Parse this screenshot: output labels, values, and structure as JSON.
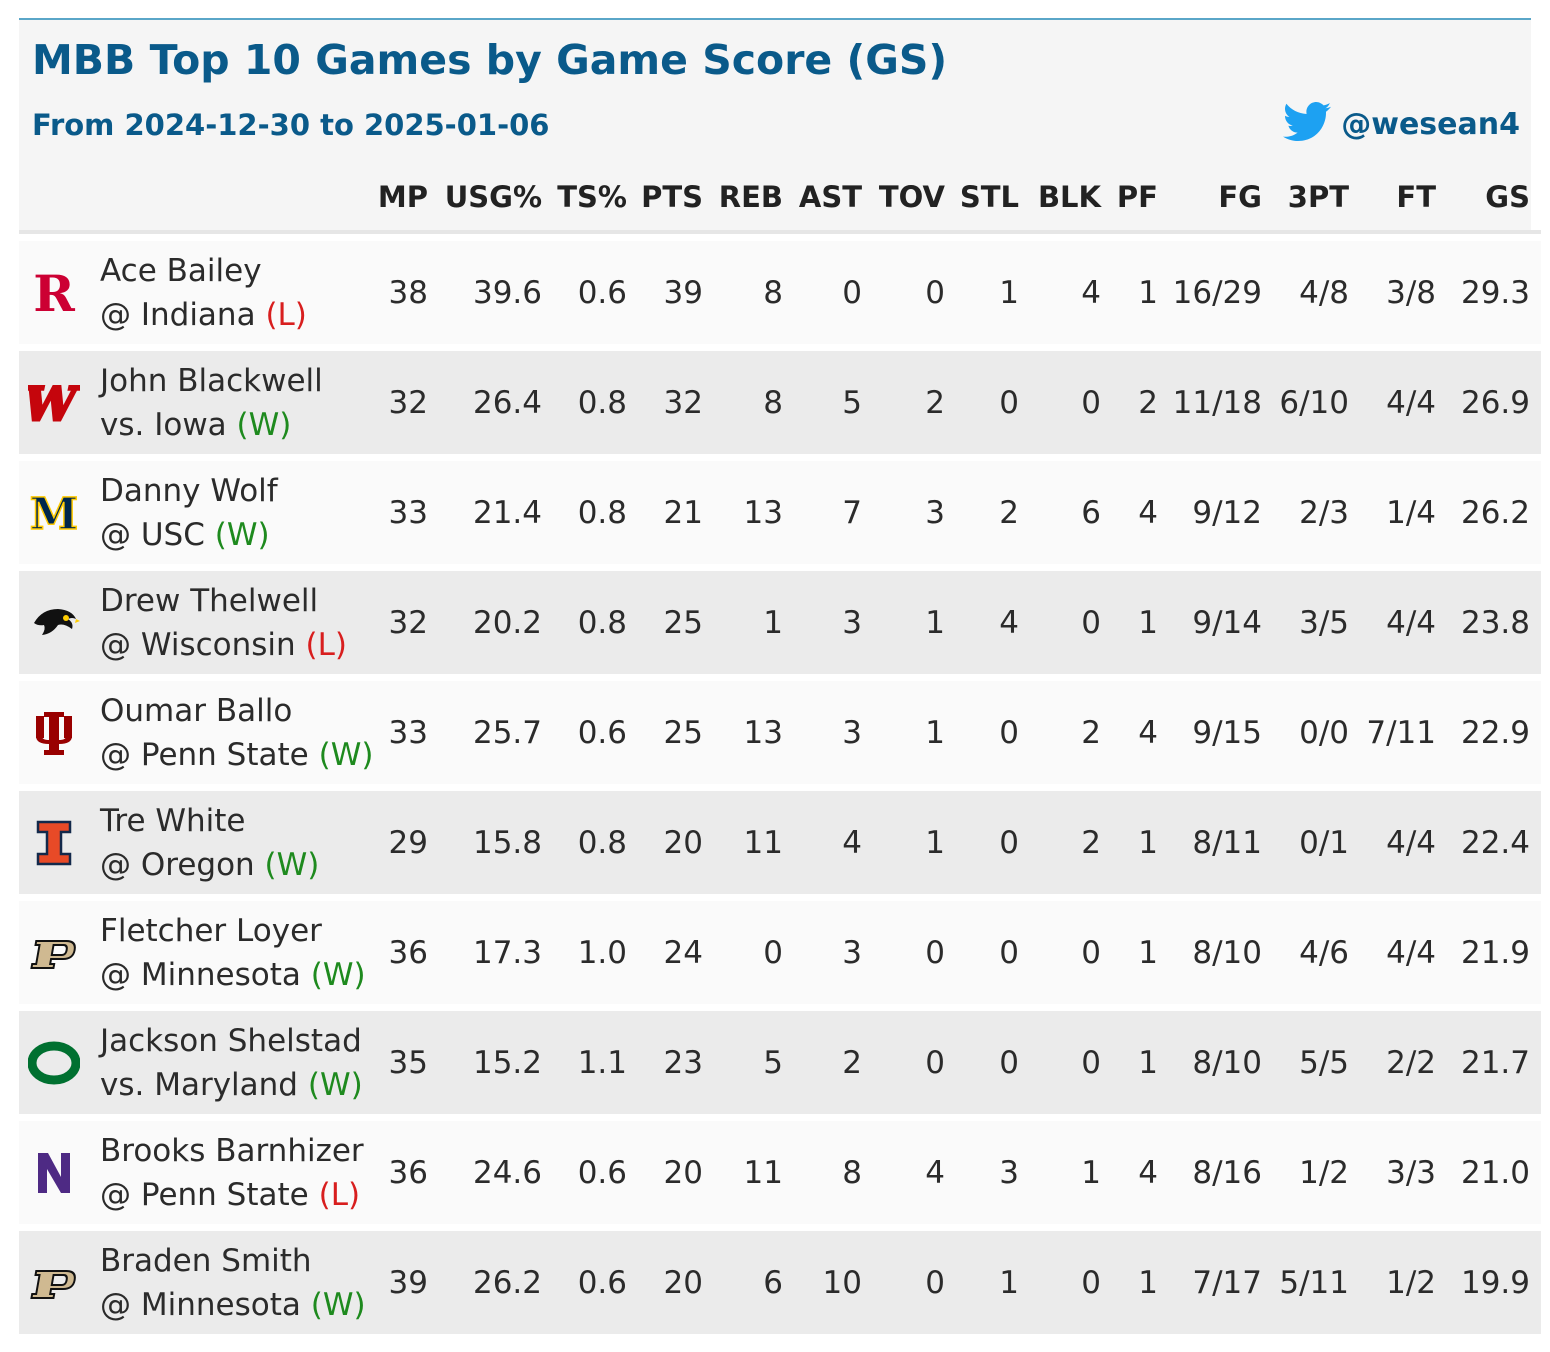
{
  "title": "MBB Top 10 Games by Game Score (GS)",
  "subtitle": "From 2024-12-30 to 2025-01-06",
  "handle": "@wesean4",
  "icons": {
    "social": "twitter-bird-icon"
  },
  "colors": {
    "title": "#0a5a8a",
    "win": "#1e8a1e",
    "loss": "#d81e1e",
    "accent_line": "#5aa6c8"
  },
  "columns": [
    "MP",
    "USG%",
    "TS%",
    "PTS",
    "REB",
    "AST",
    "TOV",
    "STL",
    "BLK",
    "PF",
    "FG",
    "3PT",
    "FT",
    "GS"
  ],
  "rows": [
    {
      "logo": "rutgers-logo",
      "logo_color": "#cc0033",
      "player": "Ace Bailey",
      "game": "@ Indiana",
      "result": "(L)",
      "stats": [
        "38",
        "39.6",
        "0.6",
        "39",
        "8",
        "0",
        "0",
        "1",
        "4",
        "1",
        "16/29",
        "4/8",
        "3/8",
        "29.3"
      ]
    },
    {
      "logo": "wisconsin-logo",
      "logo_color": "#c5050c",
      "player": "John Blackwell",
      "game": "vs. Iowa",
      "result": "(W)",
      "stats": [
        "32",
        "26.4",
        "0.8",
        "32",
        "8",
        "5",
        "2",
        "0",
        "0",
        "2",
        "11/18",
        "6/10",
        "4/4",
        "26.9"
      ]
    },
    {
      "logo": "michigan-logo",
      "logo_color": "#00274c",
      "player": "Danny Wolf",
      "game": "@ USC",
      "result": "(W)",
      "stats": [
        "33",
        "21.4",
        "0.8",
        "21",
        "13",
        "7",
        "3",
        "2",
        "6",
        "4",
        "9/12",
        "2/3",
        "1/4",
        "26.2"
      ]
    },
    {
      "logo": "iowa-logo",
      "logo_color": "#111111",
      "player": "Drew Thelwell",
      "game": "@ Wisconsin",
      "result": "(L)",
      "stats": [
        "32",
        "20.2",
        "0.8",
        "25",
        "1",
        "3",
        "1",
        "4",
        "0",
        "1",
        "9/14",
        "3/5",
        "4/4",
        "23.8"
      ]
    },
    {
      "logo": "indiana-logo",
      "logo_color": "#990000",
      "player": "Oumar Ballo",
      "game": "@ Penn State",
      "result": "(W)",
      "stats": [
        "33",
        "25.7",
        "0.6",
        "25",
        "13",
        "3",
        "1",
        "0",
        "2",
        "4",
        "9/15",
        "0/0",
        "7/11",
        "22.9"
      ]
    },
    {
      "logo": "illinois-logo",
      "logo_color": "#e84a27",
      "player": "Tre White",
      "game": "@ Oregon",
      "result": "(W)",
      "stats": [
        "29",
        "15.8",
        "0.8",
        "20",
        "11",
        "4",
        "1",
        "0",
        "2",
        "1",
        "8/11",
        "0/1",
        "4/4",
        "22.4"
      ]
    },
    {
      "logo": "purdue-logo",
      "logo_color": "#cfb991",
      "player": "Fletcher Loyer",
      "game": "@ Minnesota",
      "result": "(W)",
      "stats": [
        "36",
        "17.3",
        "1.0",
        "24",
        "0",
        "3",
        "0",
        "0",
        "0",
        "1",
        "8/10",
        "4/6",
        "4/4",
        "21.9"
      ]
    },
    {
      "logo": "oregon-logo",
      "logo_color": "#007030",
      "player": "Jackson Shelstad",
      "game": "vs. Maryland",
      "result": "(W)",
      "stats": [
        "35",
        "15.2",
        "1.1",
        "23",
        "5",
        "2",
        "0",
        "0",
        "0",
        "1",
        "8/10",
        "5/5",
        "2/2",
        "21.7"
      ]
    },
    {
      "logo": "northwestern-logo",
      "logo_color": "#4e2a84",
      "player": "Brooks Barnhizer",
      "game": "@ Penn State",
      "result": "(L)",
      "stats": [
        "36",
        "24.6",
        "0.6",
        "20",
        "11",
        "8",
        "4",
        "3",
        "1",
        "4",
        "8/16",
        "1/2",
        "3/3",
        "21.0"
      ]
    },
    {
      "logo": "purdue-logo",
      "logo_color": "#cfb991",
      "player": "Braden Smith",
      "game": "@ Minnesota",
      "result": "(W)",
      "stats": [
        "39",
        "26.2",
        "0.6",
        "20",
        "6",
        "10",
        "0",
        "1",
        "0",
        "1",
        "7/17",
        "5/11",
        "1/2",
        "19.9"
      ]
    }
  ]
}
